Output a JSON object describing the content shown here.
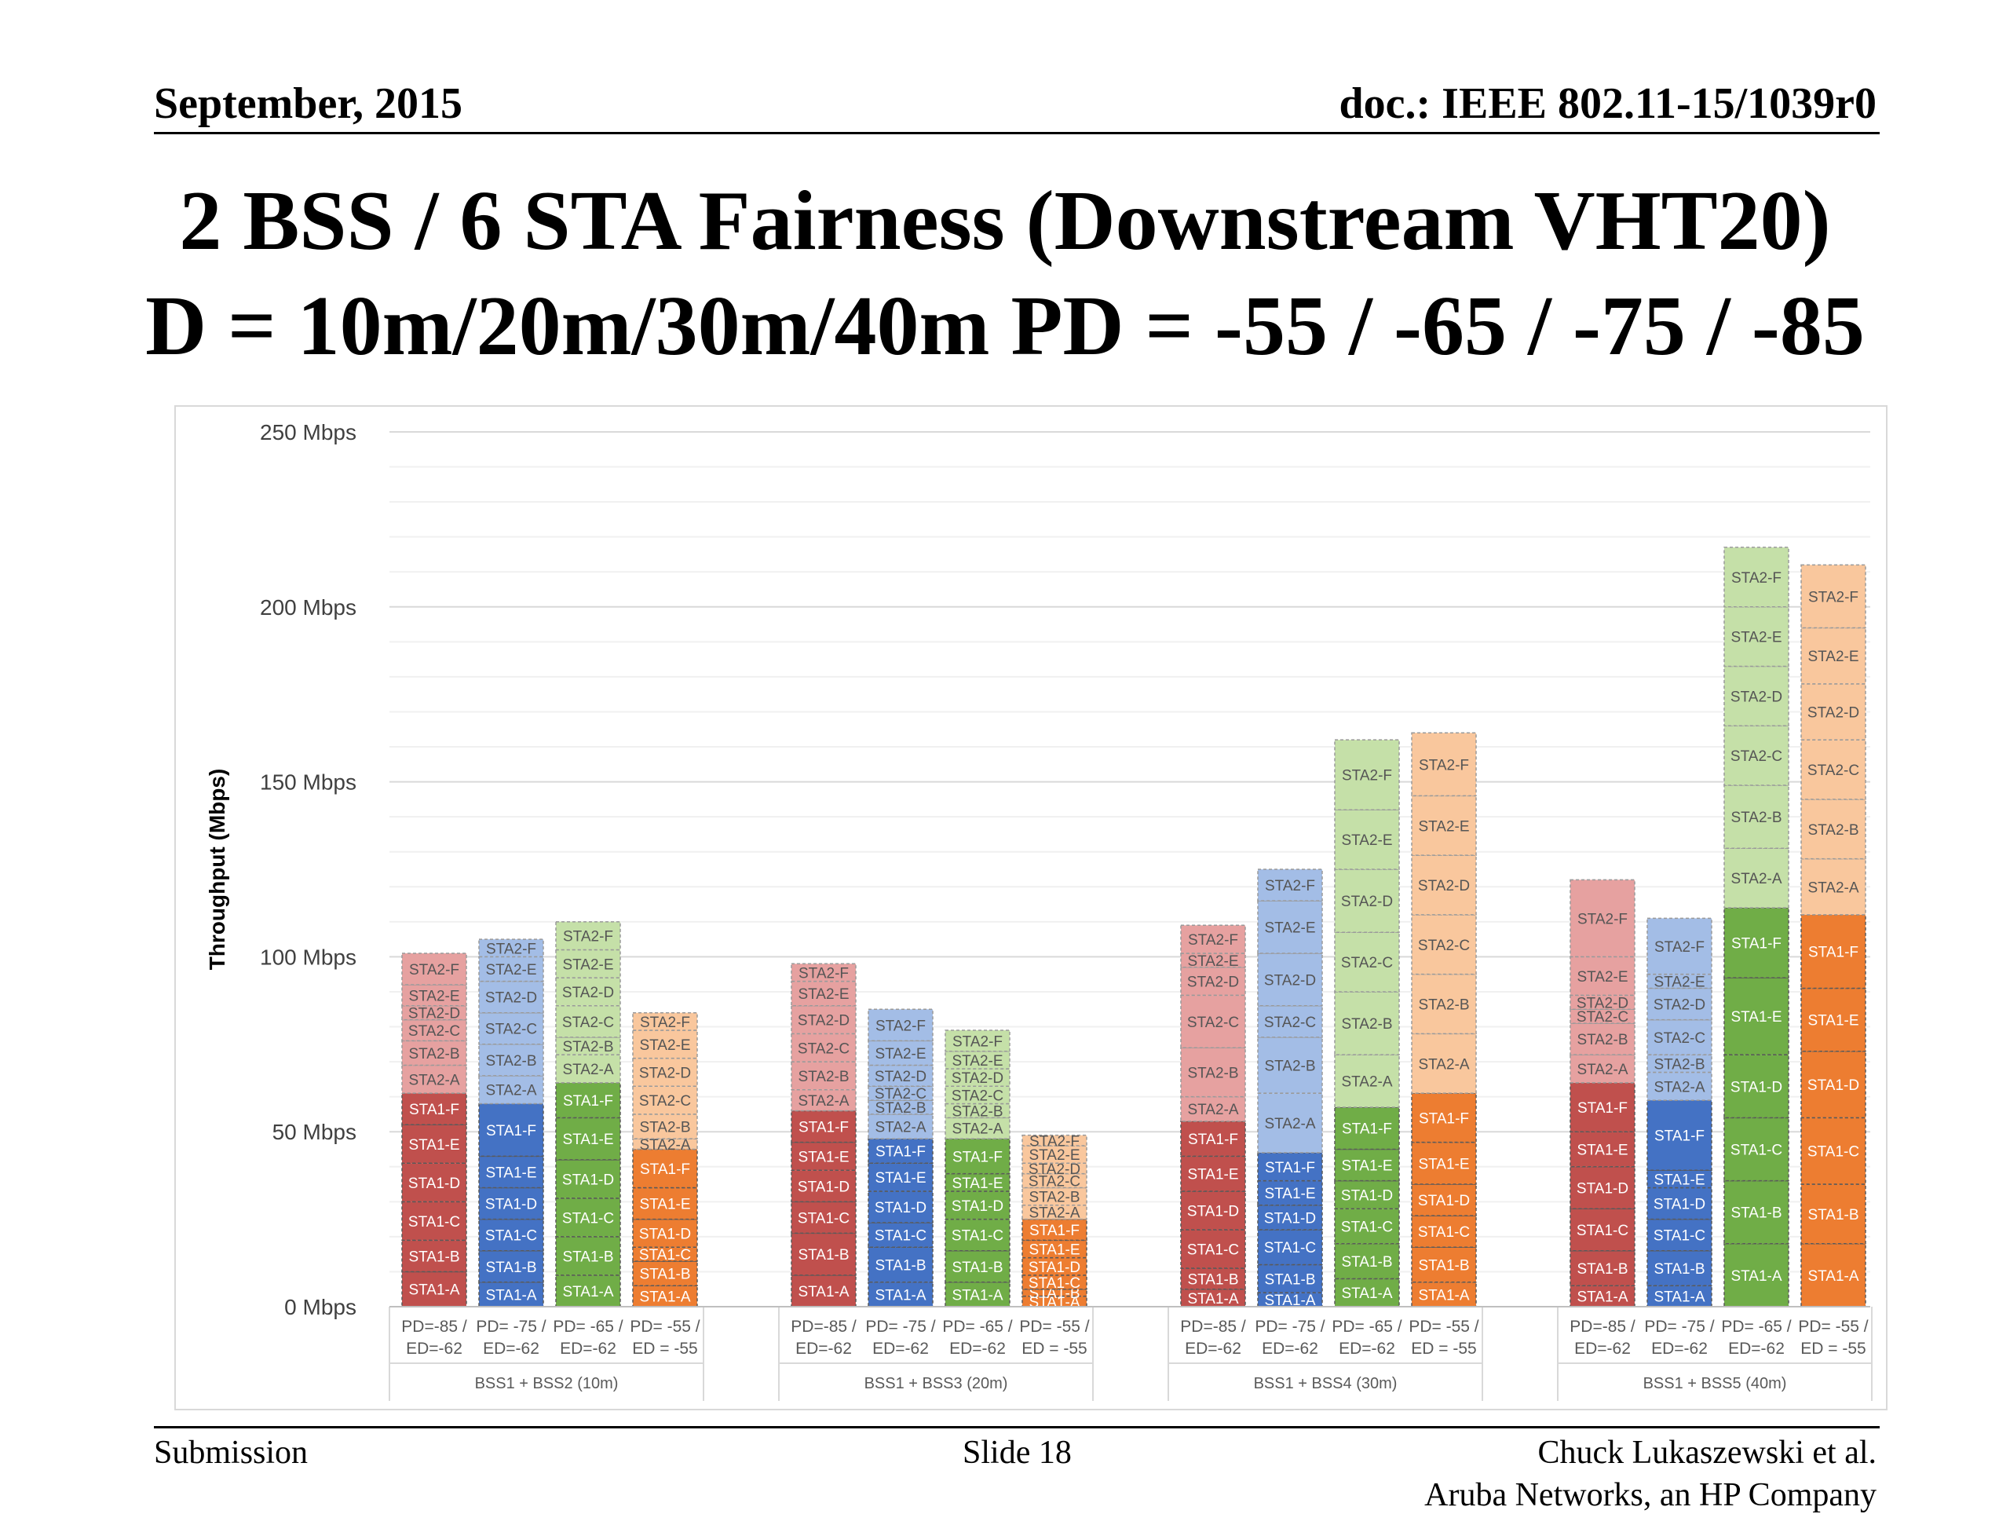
{
  "header": {
    "date": "September, 2015",
    "doc": "doc.: IEEE 802.11-15/1039r0"
  },
  "title": {
    "line1": "2 BSS / 6 STA Fairness (Downstream VHT20)",
    "line2": "D = 10m/20m/30m/40m  PD = -55 / -65 / -75 / -85"
  },
  "footer": {
    "submission": "Submission",
    "slide": "Slide 18",
    "author": "Chuck Lukaszewski et al.",
    "company": "Aruba Networks, an HP Company"
  },
  "chart_data": {
    "type": "bar",
    "stacked": true,
    "ylabel": "Throughput (Mbps)",
    "ylim": [
      0,
      250
    ],
    "yticks": [
      0,
      50,
      100,
      150,
      200,
      250
    ],
    "ytick_labels": [
      "0 Mbps",
      "50 Mbps",
      "100 Mbps",
      "150 Mbps",
      "200 Mbps",
      "250 Mbps"
    ],
    "grid": true,
    "segment_labels": [
      "STA1-A",
      "STA1-B",
      "STA1-C",
      "STA1-D",
      "STA1-E",
      "STA1-F",
      "STA2-A",
      "STA2-B",
      "STA2-C",
      "STA2-D",
      "STA2-E",
      "STA2-F"
    ],
    "settings": [
      {
        "line1": "PD=-85 /",
        "line2": "ED=-62",
        "color_sta1": "#c0504d",
        "color_sta2": "#e6a1a0"
      },
      {
        "line1": "PD= -75 /",
        "line2": "ED=-62",
        "color_sta1": "#4472c4",
        "color_sta2": "#a3bde6"
      },
      {
        "line1": "PD= -65 /",
        "line2": "ED=-62",
        "color_sta1": "#70ad47",
        "color_sta2": "#c5e0a8"
      },
      {
        "line1": "PD= -55 /",
        "line2": "ED = -55",
        "color_sta1": "#ed7d31",
        "color_sta2": "#f9c79d"
      }
    ],
    "groups": [
      {
        "label": "BSS1 + BSS2 (10m)",
        "bars": [
          {
            "sta1": [
              10,
              9,
              11,
              11,
              11,
              9
            ],
            "sta2": [
              8,
              7,
              6,
              4,
              6,
              9
            ]
          },
          {
            "sta1": [
              7,
              9,
              9,
              9,
              9,
              15
            ],
            "sta2": [
              8,
              9,
              9,
              9,
              7,
              5
            ]
          },
          {
            "sta1": [
              9,
              11,
              11,
              11,
              12,
              10
            ],
            "sta2": [
              8,
              5,
              9,
              8,
              8,
              8
            ]
          },
          {
            "sta1": [
              6,
              7,
              4,
              8,
              9,
              11
            ],
            "sta2": [
              3,
              7,
              8,
              8,
              8,
              5
            ]
          }
        ]
      },
      {
        "label": "BSS1 + BSS3 (20m)",
        "bars": [
          {
            "sta1": [
              9,
              12,
              9,
              9,
              8,
              9
            ],
            "sta2": [
              6,
              8,
              8,
              8,
              7,
              5
            ]
          },
          {
            "sta1": [
              7,
              10,
              7,
              9,
              8,
              7
            ],
            "sta2": [
              7,
              4,
              4,
              6,
              7,
              9
            ]
          },
          {
            "sta1": [
              7,
              9,
              9,
              8,
              5,
              10
            ],
            "sta2": [
              6,
              4,
              5,
              5,
              5,
              6
            ]
          },
          {
            "sta1": [
              3,
              2,
              4,
              5,
              5,
              6
            ],
            "sta2": [
              4,
              5,
              4,
              3,
              5,
              3
            ]
          }
        ]
      },
      {
        "label": "BSS1 + BSS4 (30m)",
        "bars": [
          {
            "sta1": [
              5,
              6,
              11,
              11,
              10,
              10
            ],
            "sta2": [
              7,
              14,
              15,
              8,
              4,
              8
            ]
          },
          {
            "sta1": [
              4,
              8,
              10,
              7,
              7,
              8
            ],
            "sta2": [
              17,
              16,
              9,
              15,
              15,
              9
            ]
          },
          {
            "sta1": [
              8,
              10,
              10,
              8,
              9,
              12
            ],
            "sta2": [
              15,
              18,
              17,
              18,
              17,
              20
            ]
          },
          {
            "sta1": [
              7,
              10,
              9,
              9,
              12,
              14
            ],
            "sta2": [
              17,
              17,
              17,
              17,
              17,
              18
            ]
          }
        ]
      },
      {
        "label": "BSS1 + BSS5 (40m)",
        "bars": [
          {
            "sta1": [
              6,
              10,
              12,
              12,
              10,
              14
            ],
            "sta2": [
              8,
              9,
              4,
              4,
              11,
              22
            ]
          },
          {
            "sta1": [
              6,
              10,
              9,
              9,
              5,
              20
            ],
            "sta2": [
              8,
              5,
              10,
              9,
              4,
              16
            ]
          },
          {
            "sta1": [
              18,
              18,
              18,
              18,
              22,
              20
            ],
            "sta2": [
              17,
              18,
              17,
              17,
              17,
              17
            ]
          },
          {
            "sta1": [
              18,
              17,
              19,
              19,
              18,
              21
            ],
            "sta2": [
              16,
              17,
              17,
              16,
              16,
              18
            ]
          }
        ]
      }
    ]
  }
}
